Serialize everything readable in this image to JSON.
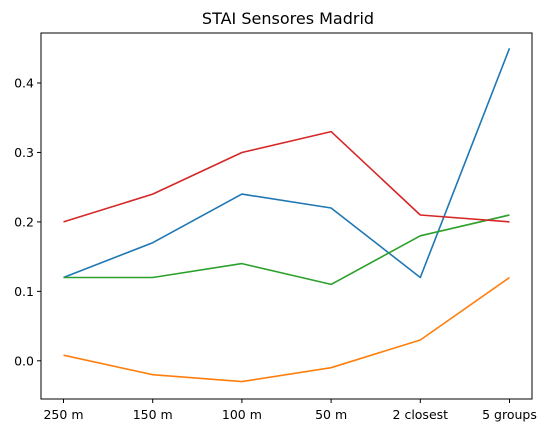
{
  "chart_data": {
    "type": "line",
    "title": "STAI Sensores Madrid",
    "xlabel": "",
    "ylabel": "",
    "categories": [
      "250 m",
      "150 m",
      "100 m",
      "50 m",
      "2 closest",
      "5 groups"
    ],
    "ylim": [
      -0.055,
      0.472
    ],
    "yticks": [
      0.0,
      0.1,
      0.2,
      0.3,
      0.4
    ],
    "ytick_labels": [
      "0.0",
      "0.1",
      "0.2",
      "0.3",
      "0.4"
    ],
    "grid": false,
    "legend": "none",
    "series": [
      {
        "color": "#1f77b4",
        "values": [
          0.12,
          0.17,
          0.24,
          0.22,
          0.12,
          0.45
        ]
      },
      {
        "color": "#ff7f0e",
        "values": [
          0.008,
          -0.02,
          -0.03,
          -0.01,
          0.03,
          0.12
        ]
      },
      {
        "color": "#2ca02c",
        "values": [
          0.12,
          0.12,
          0.14,
          0.11,
          0.18,
          0.21
        ]
      },
      {
        "color": "#d62728",
        "values": [
          0.2,
          0.24,
          0.3,
          0.33,
          0.21,
          0.2
        ]
      }
    ]
  }
}
